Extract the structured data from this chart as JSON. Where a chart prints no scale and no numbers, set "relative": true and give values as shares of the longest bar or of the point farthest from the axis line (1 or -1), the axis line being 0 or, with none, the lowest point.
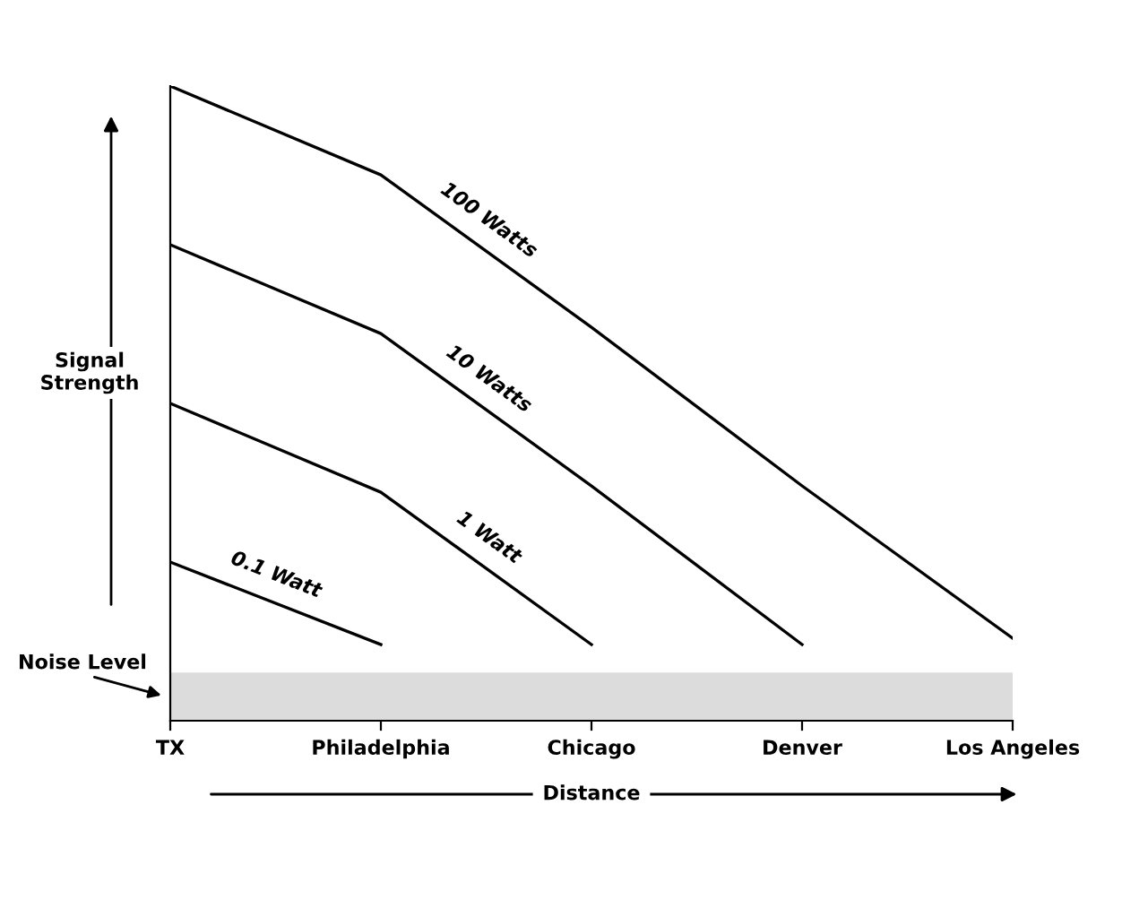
{
  "chart_data": {
    "type": "line",
    "relative": true,
    "xlabel": "Distance",
    "ylabel": "Signal\nStrength",
    "categories": [
      "TX",
      "Philadelphia",
      "Chicago",
      "Denver",
      "Los Angeles"
    ],
    "series": [
      {
        "name": "100 Watts",
        "color": "#000000",
        "values": [
          1.0,
          0.86,
          0.62,
          0.37,
          0.13
        ]
      },
      {
        "name": "10 Watts",
        "color": "#000000",
        "values": [
          0.75,
          0.61,
          0.37,
          0.12,
          null
        ]
      },
      {
        "name": "1 Watt",
        "color": "#000000",
        "values": [
          0.5,
          0.36,
          0.12,
          null,
          null
        ]
      },
      {
        "name": "0.1 Watt",
        "color": "#000000",
        "values": [
          0.25,
          0.12,
          null,
          null,
          null
        ]
      }
    ],
    "bands": [
      {
        "axis": "y",
        "from": 0,
        "to": 0.076,
        "label": "Noise Level",
        "color": "#dcdcdc"
      }
    ],
    "grid": false,
    "marker": "none",
    "line_style": "solid"
  }
}
